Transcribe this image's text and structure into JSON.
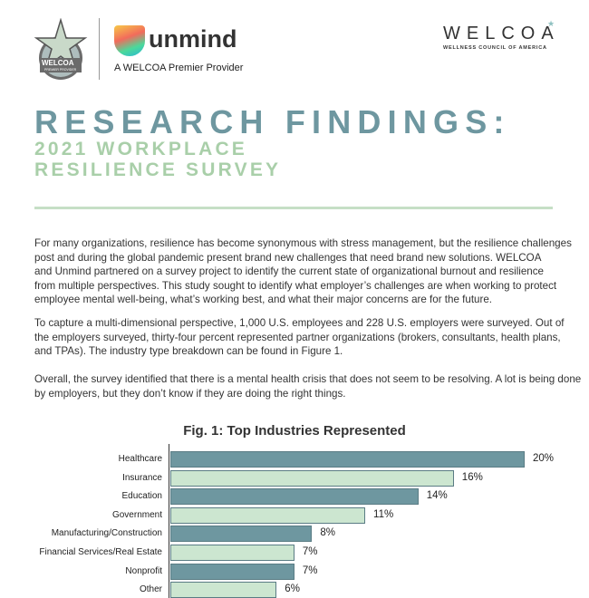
{
  "header": {
    "badge_text": "WELCOA",
    "badge_sub": "PREMIER PROVIDER",
    "partner_logo": "unmind",
    "partner_tagline": "A WELCOA Premier Provider",
    "org_logo": "WELCOA",
    "org_tagline": "WELLNESS COUNCIL OF AMERICA"
  },
  "title": "RESEARCH FINDINGS:",
  "subtitle_lines": [
    "2021 WORKPLACE",
    "RESILIENCE SURVEY"
  ],
  "paragraphs": [
    [
      "For many organizations, resilience has become synonymous with stress management, but the resilience challenges",
      "post and during the global pandemic present brand new challenges that need brand new solutions. WELCOA",
      "and Unmind partnered on a survey project to identify the current state of organizational burnout and resilience",
      "from multiple perspectives. This study sought to identify what employer’s challenges are when working to protect",
      "employee mental well-being, what’s working best, and what their major concerns are for the future."
    ],
    [
      "To capture a multi-dimensional perspective, 1,000 U.S. employees and 228 U.S. employers were surveyed. Out of",
      "the employers surveyed, thirty-four percent represented partner organizations (brokers, consultants, health plans,",
      "and TPAs). The industry type breakdown can be found in Figure 1."
    ],
    [
      "Overall, the survey identified that there is a mental health crisis that does not seem to be resolving. A lot is being done",
      "by employers, but they don’t know if they are doing the right things."
    ]
  ],
  "colors": {
    "teal": "#6e97a0",
    "green": "#cce6d0",
    "accent_green": "#a9cfa9"
  },
  "chart_data": {
    "type": "bar",
    "orientation": "horizontal",
    "title": "Fig. 1: Top Industries Represented",
    "categories": [
      "Healthcare",
      "Insurance",
      "Education",
      "Government",
      "Manufacturing/Construction",
      "Financial Services/Real Estate",
      "Nonprofit",
      "Other"
    ],
    "values": [
      20,
      16,
      14,
      11,
      8,
      7,
      7,
      6
    ],
    "labels": [
      "20%",
      "16%",
      "14%",
      "11%",
      "8%",
      "7%",
      "7%",
      "6%"
    ],
    "unit": "%",
    "grid": false
  }
}
